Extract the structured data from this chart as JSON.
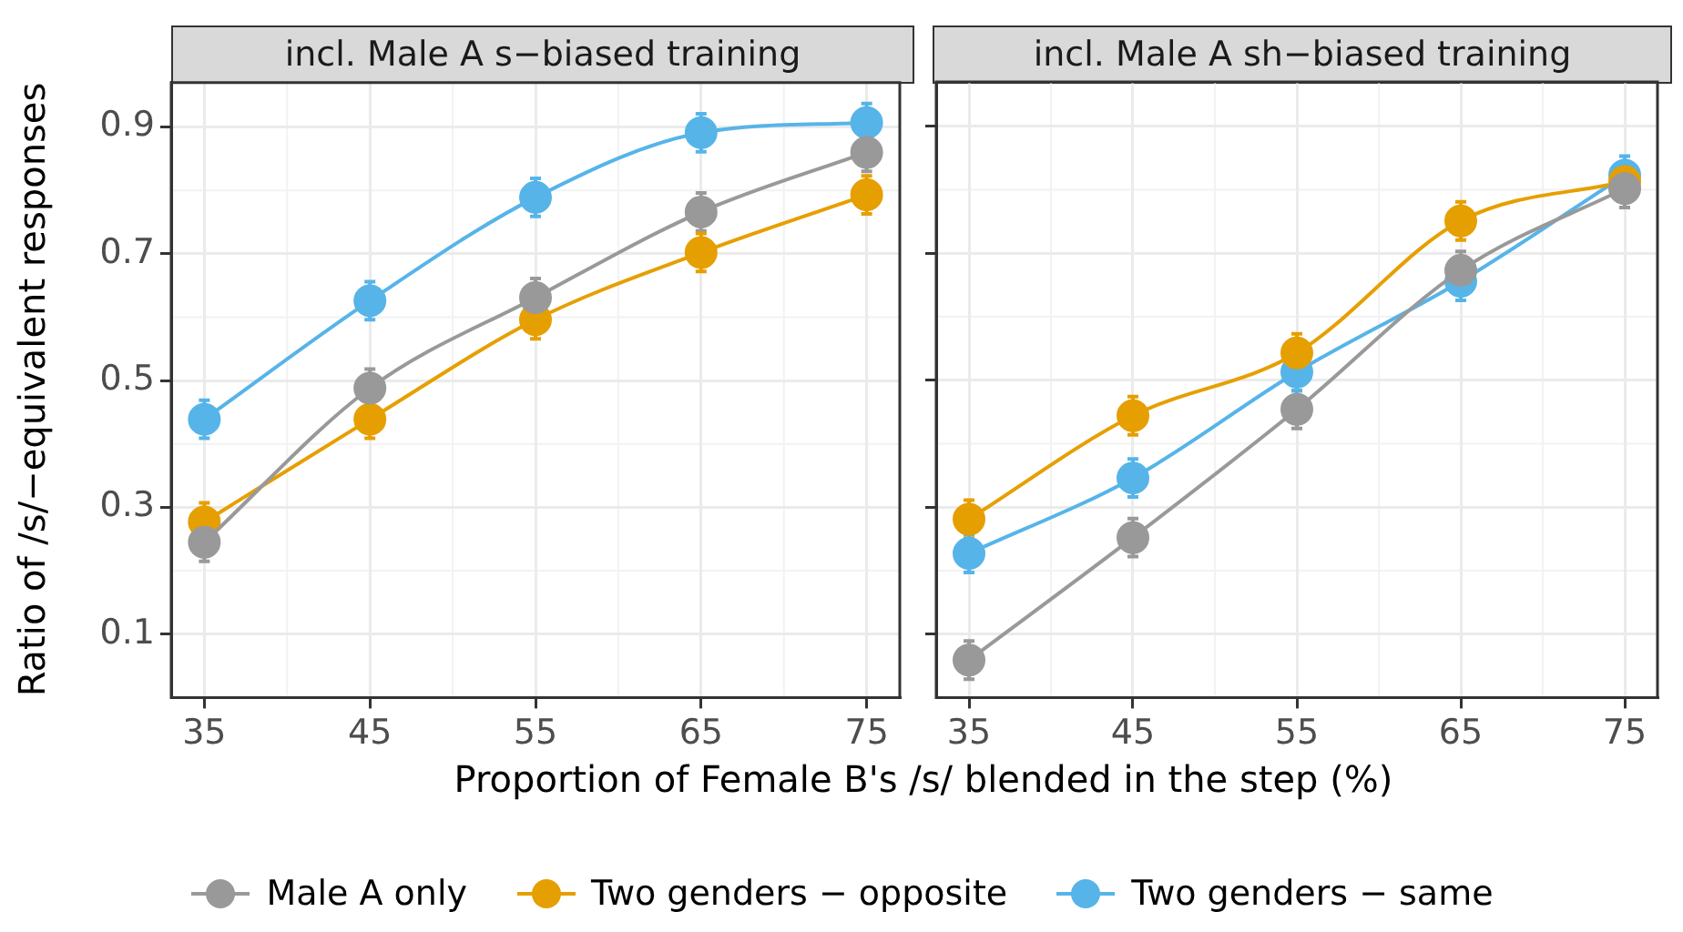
{
  "chart_data": [
    {
      "type": "line",
      "title": "incl. Male A s−biased training",
      "xlabel": "Proportion of Female B's /s/ blended in the step (%)",
      "ylabel": "Ratio of /s/−equivalent responses",
      "x": [
        35,
        45,
        55,
        65,
        75
      ],
      "xlim": [
        33,
        77
      ],
      "xticks": [
        35,
        45,
        55,
        65,
        75
      ],
      "ylim": [
        0,
        0.97
      ],
      "yticks": [
        0.1,
        0.3,
        0.5,
        0.7,
        0.9
      ],
      "grid": true,
      "marker": "circle",
      "line_style": "solid",
      "legend": "bottom",
      "series": [
        {
          "name": "Male A only",
          "color": "#999999",
          "values": [
            0.245,
            0.488,
            0.631,
            0.766,
            0.86
          ],
          "errors": [
            0.03,
            0.03,
            0.03,
            0.03,
            0.03
          ]
        },
        {
          "name": "Two genders − opposite",
          "color": "#e69f00",
          "values": [
            0.277,
            0.439,
            0.596,
            0.702,
            0.793
          ],
          "errors": [
            0.03,
            0.03,
            0.03,
            0.03,
            0.03
          ]
        },
        {
          "name": "Two genders − same",
          "color": "#56b4e9",
          "values": [
            0.439,
            0.626,
            0.789,
            0.891,
            0.907
          ],
          "errors": [
            0.03,
            0.03,
            0.03,
            0.03,
            0.03
          ]
        }
      ]
    },
    {
      "type": "line",
      "title": "incl. Male A sh−biased training",
      "x": [
        35,
        45,
        55,
        65,
        75
      ],
      "xlim": [
        33,
        77
      ],
      "xticks": [
        35,
        45,
        55,
        65,
        75
      ],
      "ylim": [
        0,
        0.97
      ],
      "yticks": [
        0.1,
        0.3,
        0.5,
        0.7,
        0.9
      ],
      "tick_labels": "x",
      "grid": true,
      "marker": "circle",
      "line_style": "solid",
      "series": [
        {
          "color": "#999999",
          "values": [
            0.059,
            0.252,
            0.454,
            0.673,
            0.802
          ],
          "errors": [
            0.03,
            0.03,
            0.03,
            0.03,
            0.03
          ]
        },
        {
          "color": "#e69f00",
          "values": [
            0.281,
            0.444,
            0.543,
            0.751,
            0.813
          ],
          "errors": [
            0.03,
            0.03,
            0.03,
            0.03,
            0.03
          ]
        },
        {
          "color": "#56b4e9",
          "values": [
            0.227,
            0.346,
            0.513,
            0.656,
            0.823
          ],
          "errors": [
            0.03,
            0.03,
            0.03,
            0.03,
            0.03
          ]
        }
      ]
    }
  ]
}
